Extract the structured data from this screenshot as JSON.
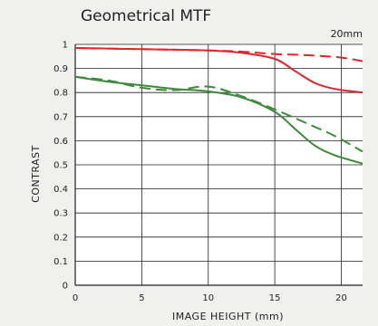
{
  "title": "Geometrical MTF",
  "chart_data": {
    "type": "line",
    "title": "Geometrical MTF",
    "annotation": "20mm",
    "xlabel": "IMAGE HEIGHT (mm)",
    "ylabel": "CONTRAST",
    "xlim": [
      0,
      21.6
    ],
    "ylim": [
      0,
      1
    ],
    "xticks": [
      0,
      5,
      10,
      15,
      20
    ],
    "yticks": [
      0,
      0.1,
      0.2,
      0.3,
      0.4,
      0.5,
      0.6,
      0.7,
      0.8,
      0.9,
      1
    ],
    "ytick_labels": [
      "0",
      "0.1",
      "0.2",
      "0.3",
      "0.4",
      "0.5",
      "0.6",
      "0.7",
      "0.8",
      "0.9",
      "1"
    ],
    "grid": true,
    "series": [
      {
        "color": "#e0262b",
        "dash": false,
        "x": [
          0,
          5,
          10,
          12.5,
          15,
          16.5,
          18,
          19.5,
          21.6
        ],
        "y": [
          0.985,
          0.98,
          0.975,
          0.965,
          0.94,
          0.89,
          0.84,
          0.815,
          0.8
        ]
      },
      {
        "color": "#e0262b",
        "dash": true,
        "x": [
          0,
          5,
          10,
          12.5,
          15,
          17.5,
          20,
          21.6
        ],
        "y": [
          0.985,
          0.98,
          0.975,
          0.97,
          0.96,
          0.955,
          0.945,
          0.93
        ]
      },
      {
        "color": "#3c8a3a",
        "dash": false,
        "x": [
          0,
          2.5,
          5,
          7.5,
          10,
          12.5,
          15,
          16.5,
          18,
          19.5,
          21.6
        ],
        "y": [
          0.865,
          0.845,
          0.83,
          0.815,
          0.805,
          0.78,
          0.72,
          0.65,
          0.58,
          0.54,
          0.505
        ]
      },
      {
        "color": "#3c8a3a",
        "dash": true,
        "x": [
          0,
          2.5,
          5,
          7.5,
          10,
          12.5,
          15,
          17.5,
          19.5,
          21.6
        ],
        "y": [
          0.865,
          0.85,
          0.82,
          0.81,
          0.825,
          0.785,
          0.73,
          0.67,
          0.62,
          0.555
        ]
      }
    ]
  }
}
